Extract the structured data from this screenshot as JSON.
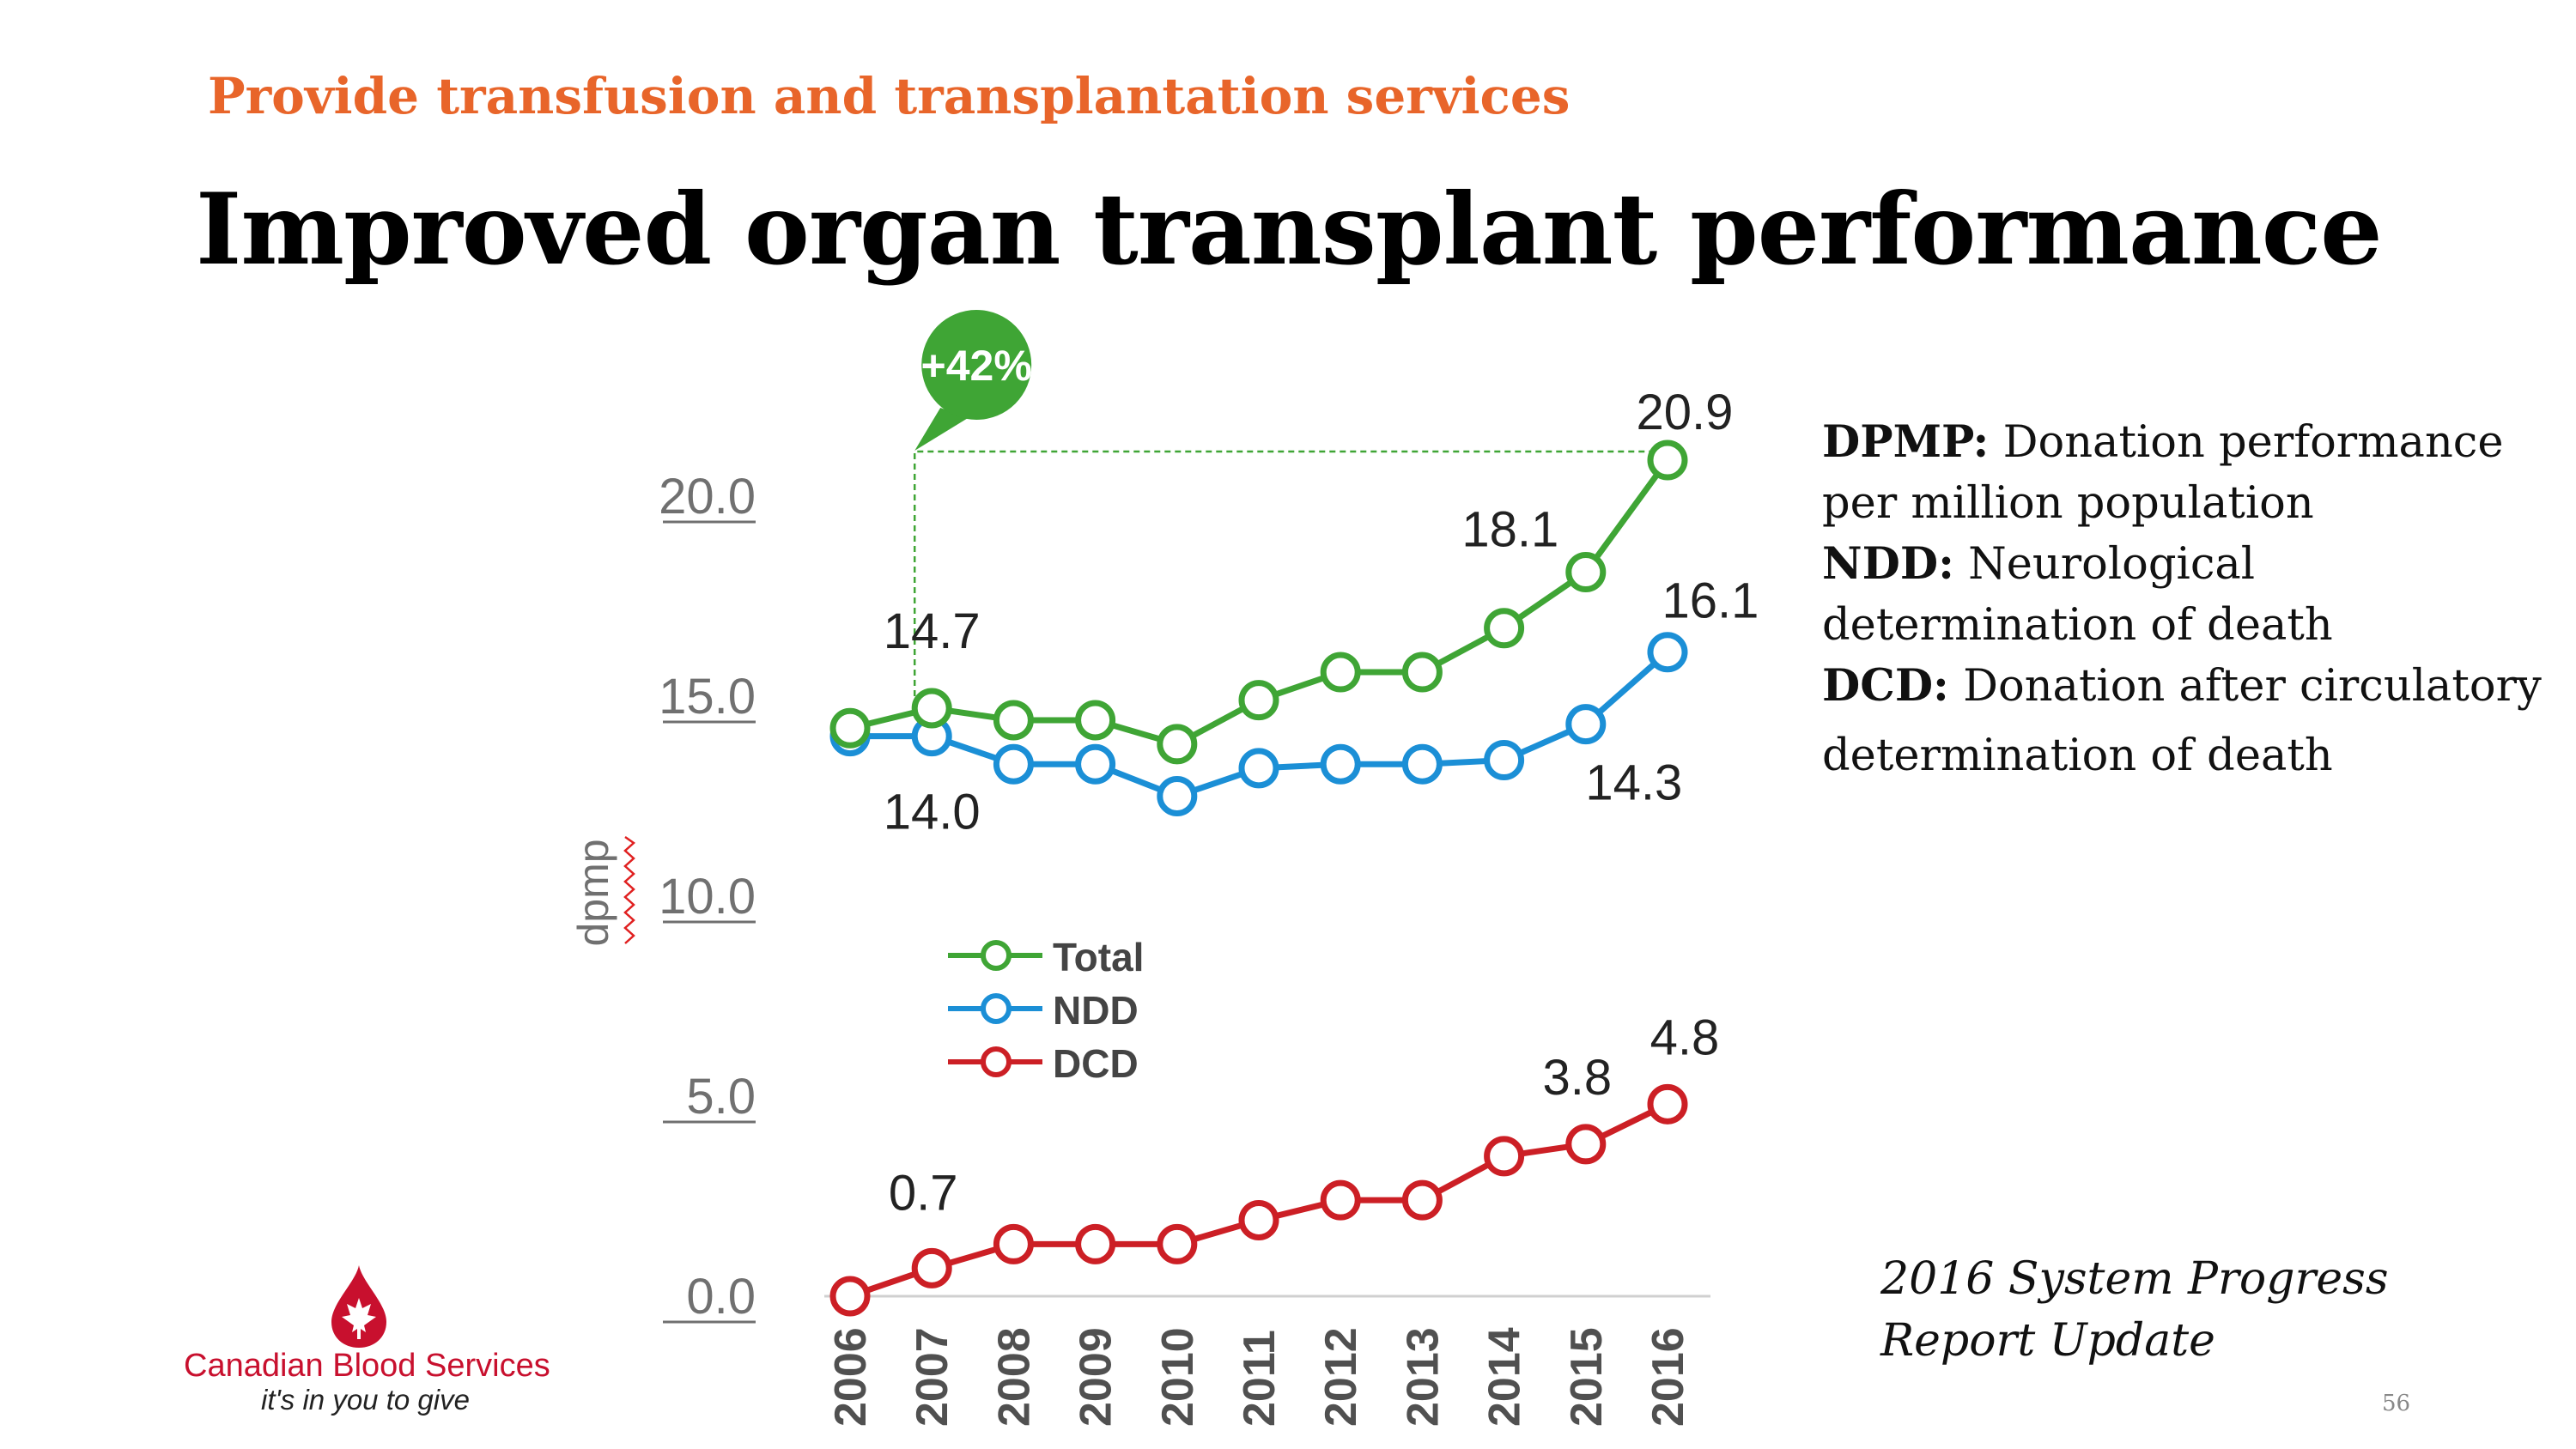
{
  "slide": {
    "section": "Provide transfusion and transplantation services",
    "title": "Improved organ transplant performance",
    "page_number": "56",
    "report_line1": "2016 System Progress",
    "report_line2": "Report Update"
  },
  "definitions": [
    {
      "term": "DPMP:",
      "line1": "Donation performance",
      "line2": "per million population"
    },
    {
      "term": "NDD:",
      "line1": "Neurological",
      "line2": "determination of death"
    },
    {
      "term": "DCD:",
      "line1": "Donation after circulatory",
      "line2": "determination of death"
    }
  ],
  "logo": {
    "name": "Canadian Blood Services",
    "tagline": "it's in you to give"
  },
  "chart_data": {
    "type": "line",
    "ylabel": "dpmp",
    "ylim": [
      0,
      22
    ],
    "yticks": [
      "0.0",
      "5.0",
      "10.0",
      "15.0",
      "20.0"
    ],
    "ytick_values": [
      0,
      5,
      10,
      15,
      20
    ],
    "categories": [
      "2006",
      "2007",
      "2008",
      "2009",
      "2010",
      "2011",
      "2012",
      "2013",
      "2014",
      "2015",
      "2016"
    ],
    "series": [
      {
        "name": "Total",
        "color": "#3fa535",
        "values": [
          14.2,
          14.7,
          14.4,
          14.4,
          13.8,
          14.9,
          15.6,
          15.6,
          16.7,
          18.1,
          20.9
        ]
      },
      {
        "name": "NDD",
        "color": "#1b8fd6",
        "values": [
          14.0,
          14.0,
          13.3,
          13.3,
          12.5,
          13.2,
          13.3,
          13.3,
          13.4,
          14.3,
          16.1
        ]
      },
      {
        "name": "DCD",
        "color": "#cc1f25",
        "values": [
          0.0,
          0.7,
          1.3,
          1.3,
          1.3,
          1.9,
          2.4,
          2.4,
          3.5,
          3.8,
          4.8
        ]
      }
    ],
    "data_labels": [
      {
        "series": "Total",
        "category": "2007",
        "text": "14.7"
      },
      {
        "series": "Total",
        "category": "2015",
        "text": "18.1"
      },
      {
        "series": "Total",
        "category": "2016",
        "text": "20.9"
      },
      {
        "series": "NDD",
        "category": "2007",
        "text": "14.0"
      },
      {
        "series": "NDD",
        "category": "2015",
        "text": "14.3"
      },
      {
        "series": "NDD",
        "category": "2016",
        "text": "16.1"
      },
      {
        "series": "DCD",
        "category": "2007",
        "text": "0.7"
      },
      {
        "series": "DCD",
        "category": "2015",
        "text": "3.8"
      },
      {
        "series": "DCD",
        "category": "2016",
        "text": "4.8"
      }
    ],
    "annotation": {
      "text": "+42%",
      "from": "2007",
      "to": "2016",
      "color": "#3fa535"
    },
    "legend": {
      "placement": "center-left",
      "entries": [
        "Total",
        "NDD",
        "DCD"
      ]
    },
    "grid": false
  }
}
